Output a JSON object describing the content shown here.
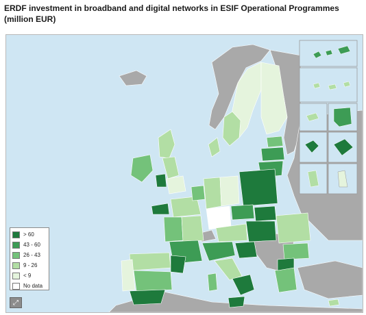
{
  "title": {
    "line1": "ERDF investment in broadband and digital networks in ESIF Operational Programmes",
    "line2": "(million EUR)"
  },
  "legend": {
    "classes": [
      {
        "label": "> 60",
        "color": "#1e7a3c"
      },
      {
        "label": "43 - 60",
        "color": "#3d9c55"
      },
      {
        "label": "26 - 43",
        "color": "#74c27a"
      },
      {
        "label": "9 - 26",
        "color": "#b2dea4"
      },
      {
        "label": "< 9",
        "color": "#e5f4dd"
      },
      {
        "label": "No data",
        "color": "#ffffff"
      }
    ]
  },
  "colors": {
    "sea": "#cfe6f3",
    "non_eu": "#a9a9a9",
    "border": "#ffffff"
  },
  "icons": {
    "zoom": "expand-icon"
  }
}
